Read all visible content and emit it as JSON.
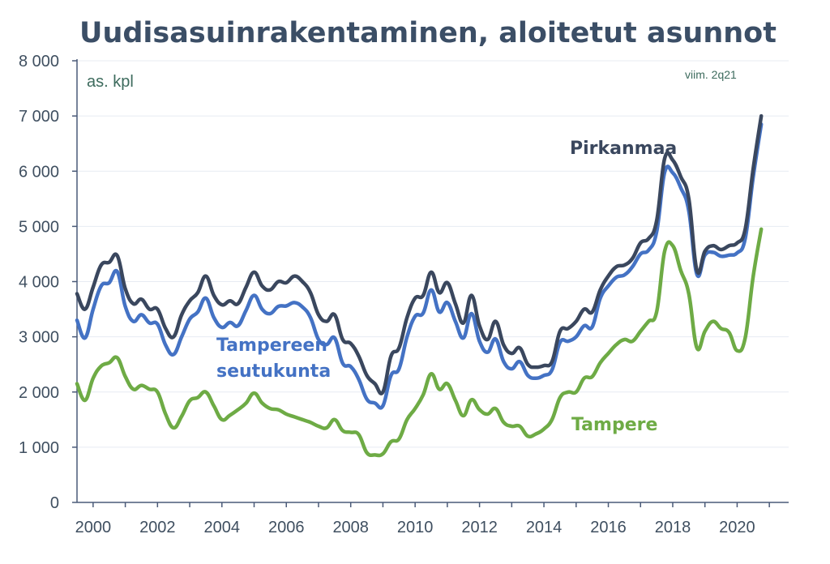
{
  "colors": {
    "title": "#3B4E66",
    "axis_text": "#3F4F60",
    "axis_line": "#4A5A78",
    "grid": "#E7EBF2",
    "note": "#3D6B5D",
    "pirkanmaa": "#3A475E",
    "seutukunta": "#4472C4",
    "tampere": "#6EAB45"
  },
  "chart_data": {
    "type": "line",
    "title": "Uudisasuinrakentaminen, aloitetut asunnot",
    "unit_label": "as. kpl",
    "note": "viim. 2q21",
    "xlim": [
      1999.5,
      2021.6
    ],
    "ylim": [
      0,
      8000
    ],
    "y_ticks": [
      {
        "value": 0,
        "label": "0"
      },
      {
        "value": 1000,
        "label": "1 000"
      },
      {
        "value": 2000,
        "label": "2 000"
      },
      {
        "value": 3000,
        "label": "3 000"
      },
      {
        "value": 4000,
        "label": "4 000"
      },
      {
        "value": 5000,
        "label": "5 000"
      },
      {
        "value": 6000,
        "label": "6 000"
      },
      {
        "value": 7000,
        "label": "7 000"
      },
      {
        "value": 8000,
        "label": "8 000"
      }
    ],
    "x_ticks": [
      {
        "value": 2000,
        "label": "2000"
      },
      {
        "value": 2002,
        "label": "2002"
      },
      {
        "value": 2004,
        "label": "2004"
      },
      {
        "value": 2006,
        "label": "2006"
      },
      {
        "value": 2008,
        "label": "2008"
      },
      {
        "value": 2010,
        "label": "2010"
      },
      {
        "value": 2012,
        "label": "2012"
      },
      {
        "value": 2014,
        "label": "2014"
      },
      {
        "value": 2016,
        "label": "2016"
      },
      {
        "value": 2018,
        "label": "2018"
      },
      {
        "value": 2020,
        "label": "2020"
      }
    ],
    "grid": true,
    "series": [
      {
        "name": "Pirkanmaa",
        "color_key": "pirkanmaa",
        "points": [
          [
            1999.5,
            3780
          ],
          [
            1999.75,
            3500
          ],
          [
            2000.0,
            3900
          ],
          [
            2000.25,
            4300
          ],
          [
            2000.5,
            4350
          ],
          [
            2000.75,
            4470
          ],
          [
            2001.0,
            3870
          ],
          [
            2001.25,
            3600
          ],
          [
            2001.5,
            3680
          ],
          [
            2001.75,
            3500
          ],
          [
            2002.0,
            3500
          ],
          [
            2002.25,
            3150
          ],
          [
            2002.5,
            3000
          ],
          [
            2002.75,
            3400
          ],
          [
            2003.0,
            3650
          ],
          [
            2003.25,
            3800
          ],
          [
            2003.5,
            4100
          ],
          [
            2003.75,
            3750
          ],
          [
            2004.0,
            3580
          ],
          [
            2004.25,
            3650
          ],
          [
            2004.5,
            3600
          ],
          [
            2004.75,
            3900
          ],
          [
            2005.0,
            4170
          ],
          [
            2005.25,
            3920
          ],
          [
            2005.5,
            3850
          ],
          [
            2005.75,
            4000
          ],
          [
            2006.0,
            3980
          ],
          [
            2006.25,
            4100
          ],
          [
            2006.5,
            4000
          ],
          [
            2006.75,
            3800
          ],
          [
            2007.0,
            3400
          ],
          [
            2007.25,
            3280
          ],
          [
            2007.5,
            3400
          ],
          [
            2007.75,
            2950
          ],
          [
            2008.0,
            2880
          ],
          [
            2008.25,
            2650
          ],
          [
            2008.5,
            2300
          ],
          [
            2008.75,
            2150
          ],
          [
            2009.0,
            2000
          ],
          [
            2009.25,
            2650
          ],
          [
            2009.5,
            2800
          ],
          [
            2009.75,
            3350
          ],
          [
            2010.0,
            3700
          ],
          [
            2010.25,
            3750
          ],
          [
            2010.5,
            4170
          ],
          [
            2010.75,
            3800
          ],
          [
            2011.0,
            3980
          ],
          [
            2011.25,
            3600
          ],
          [
            2011.5,
            3250
          ],
          [
            2011.75,
            3750
          ],
          [
            2012.0,
            3200
          ],
          [
            2012.25,
            2950
          ],
          [
            2012.5,
            3280
          ],
          [
            2012.75,
            2850
          ],
          [
            2013.0,
            2700
          ],
          [
            2013.25,
            2800
          ],
          [
            2013.5,
            2500
          ],
          [
            2013.75,
            2450
          ],
          [
            2014.0,
            2480
          ],
          [
            2014.25,
            2550
          ],
          [
            2014.5,
            3100
          ],
          [
            2014.75,
            3150
          ],
          [
            2015.0,
            3280
          ],
          [
            2015.25,
            3500
          ],
          [
            2015.5,
            3450
          ],
          [
            2015.75,
            3850
          ],
          [
            2016.0,
            4100
          ],
          [
            2016.25,
            4270
          ],
          [
            2016.5,
            4300
          ],
          [
            2016.75,
            4420
          ],
          [
            2017.0,
            4700
          ],
          [
            2017.25,
            4780
          ],
          [
            2017.5,
            5100
          ],
          [
            2017.75,
            6230
          ],
          [
            2018.0,
            6200
          ],
          [
            2018.25,
            5900
          ],
          [
            2018.5,
            5500
          ],
          [
            2018.75,
            4200
          ],
          [
            2019.0,
            4550
          ],
          [
            2019.25,
            4650
          ],
          [
            2019.5,
            4580
          ],
          [
            2019.75,
            4650
          ],
          [
            2020.0,
            4700
          ],
          [
            2020.25,
            4950
          ],
          [
            2020.5,
            6050
          ],
          [
            2020.75,
            7000
          ]
        ]
      },
      {
        "name": "Tampereen seutukunta",
        "color_key": "seutukunta",
        "points": [
          [
            1999.5,
            3300
          ],
          [
            1999.75,
            2980
          ],
          [
            2000.0,
            3500
          ],
          [
            2000.25,
            3920
          ],
          [
            2000.5,
            3980
          ],
          [
            2000.75,
            4180
          ],
          [
            2001.0,
            3550
          ],
          [
            2001.25,
            3280
          ],
          [
            2001.5,
            3400
          ],
          [
            2001.75,
            3250
          ],
          [
            2002.0,
            3230
          ],
          [
            2002.25,
            2850
          ],
          [
            2002.5,
            2680
          ],
          [
            2002.75,
            3000
          ],
          [
            2003.0,
            3320
          ],
          [
            2003.25,
            3450
          ],
          [
            2003.5,
            3700
          ],
          [
            2003.75,
            3350
          ],
          [
            2004.0,
            3170
          ],
          [
            2004.25,
            3260
          ],
          [
            2004.5,
            3200
          ],
          [
            2004.75,
            3480
          ],
          [
            2005.0,
            3750
          ],
          [
            2005.25,
            3500
          ],
          [
            2005.5,
            3420
          ],
          [
            2005.75,
            3550
          ],
          [
            2006.0,
            3560
          ],
          [
            2006.25,
            3620
          ],
          [
            2006.5,
            3540
          ],
          [
            2006.75,
            3350
          ],
          [
            2007.0,
            2950
          ],
          [
            2007.25,
            2860
          ],
          [
            2007.5,
            2980
          ],
          [
            2007.75,
            2520
          ],
          [
            2008.0,
            2460
          ],
          [
            2008.25,
            2230
          ],
          [
            2008.5,
            1870
          ],
          [
            2008.75,
            1800
          ],
          [
            2009.0,
            1750
          ],
          [
            2009.25,
            2300
          ],
          [
            2009.5,
            2420
          ],
          [
            2009.75,
            3000
          ],
          [
            2010.0,
            3370
          ],
          [
            2010.25,
            3430
          ],
          [
            2010.5,
            3850
          ],
          [
            2010.75,
            3450
          ],
          [
            2011.0,
            3620
          ],
          [
            2011.25,
            3280
          ],
          [
            2011.5,
            2980
          ],
          [
            2011.75,
            3420
          ],
          [
            2012.0,
            2920
          ],
          [
            2012.25,
            2720
          ],
          [
            2012.5,
            2960
          ],
          [
            2012.75,
            2550
          ],
          [
            2013.0,
            2420
          ],
          [
            2013.25,
            2550
          ],
          [
            2013.5,
            2300
          ],
          [
            2013.75,
            2250
          ],
          [
            2014.0,
            2300
          ],
          [
            2014.25,
            2400
          ],
          [
            2014.5,
            2900
          ],
          [
            2014.75,
            2920
          ],
          [
            2015.0,
            3000
          ],
          [
            2015.25,
            3200
          ],
          [
            2015.5,
            3180
          ],
          [
            2015.75,
            3700
          ],
          [
            2016.0,
            3920
          ],
          [
            2016.25,
            4080
          ],
          [
            2016.5,
            4120
          ],
          [
            2016.75,
            4270
          ],
          [
            2017.0,
            4500
          ],
          [
            2017.25,
            4570
          ],
          [
            2017.5,
            4900
          ],
          [
            2017.75,
            5980
          ],
          [
            2018.0,
            5970
          ],
          [
            2018.25,
            5700
          ],
          [
            2018.5,
            5280
          ],
          [
            2018.75,
            4130
          ],
          [
            2019.0,
            4480
          ],
          [
            2019.25,
            4530
          ],
          [
            2019.5,
            4460
          ],
          [
            2019.75,
            4480
          ],
          [
            2020.0,
            4520
          ],
          [
            2020.25,
            4780
          ],
          [
            2020.5,
            5900
          ],
          [
            2020.75,
            6850
          ]
        ]
      },
      {
        "name": "Tampere",
        "color_key": "tampere",
        "points": [
          [
            1999.5,
            2150
          ],
          [
            1999.75,
            1850
          ],
          [
            2000.0,
            2250
          ],
          [
            2000.25,
            2470
          ],
          [
            2000.5,
            2530
          ],
          [
            2000.75,
            2620
          ],
          [
            2001.0,
            2280
          ],
          [
            2001.25,
            2050
          ],
          [
            2001.5,
            2120
          ],
          [
            2001.75,
            2050
          ],
          [
            2002.0,
            2000
          ],
          [
            2002.25,
            1600
          ],
          [
            2002.5,
            1350
          ],
          [
            2002.75,
            1560
          ],
          [
            2003.0,
            1840
          ],
          [
            2003.25,
            1900
          ],
          [
            2003.5,
            2000
          ],
          [
            2003.75,
            1750
          ],
          [
            2004.0,
            1500
          ],
          [
            2004.25,
            1580
          ],
          [
            2004.5,
            1680
          ],
          [
            2004.75,
            1800
          ],
          [
            2005.0,
            1980
          ],
          [
            2005.25,
            1800
          ],
          [
            2005.5,
            1700
          ],
          [
            2005.75,
            1680
          ],
          [
            2006.0,
            1600
          ],
          [
            2006.25,
            1550
          ],
          [
            2006.5,
            1500
          ],
          [
            2006.75,
            1450
          ],
          [
            2007.0,
            1380
          ],
          [
            2007.25,
            1350
          ],
          [
            2007.5,
            1500
          ],
          [
            2007.75,
            1300
          ],
          [
            2008.0,
            1270
          ],
          [
            2008.25,
            1230
          ],
          [
            2008.5,
            900
          ],
          [
            2008.75,
            860
          ],
          [
            2009.0,
            880
          ],
          [
            2009.25,
            1100
          ],
          [
            2009.5,
            1150
          ],
          [
            2009.75,
            1500
          ],
          [
            2010.0,
            1700
          ],
          [
            2010.25,
            1950
          ],
          [
            2010.5,
            2330
          ],
          [
            2010.75,
            2050
          ],
          [
            2011.0,
            2150
          ],
          [
            2011.25,
            1850
          ],
          [
            2011.5,
            1570
          ],
          [
            2011.75,
            1860
          ],
          [
            2012.0,
            1680
          ],
          [
            2012.25,
            1600
          ],
          [
            2012.5,
            1700
          ],
          [
            2012.75,
            1450
          ],
          [
            2013.0,
            1380
          ],
          [
            2013.25,
            1380
          ],
          [
            2013.5,
            1200
          ],
          [
            2013.75,
            1240
          ],
          [
            2014.0,
            1330
          ],
          [
            2014.25,
            1500
          ],
          [
            2014.5,
            1900
          ],
          [
            2014.75,
            2000
          ],
          [
            2015.0,
            2000
          ],
          [
            2015.25,
            2250
          ],
          [
            2015.5,
            2280
          ],
          [
            2015.75,
            2530
          ],
          [
            2016.0,
            2700
          ],
          [
            2016.25,
            2860
          ],
          [
            2016.5,
            2950
          ],
          [
            2016.75,
            2920
          ],
          [
            2017.0,
            3100
          ],
          [
            2017.25,
            3280
          ],
          [
            2017.5,
            3450
          ],
          [
            2017.75,
            4550
          ],
          [
            2018.0,
            4650
          ],
          [
            2018.25,
            4200
          ],
          [
            2018.5,
            3780
          ],
          [
            2018.75,
            2800
          ],
          [
            2019.0,
            3100
          ],
          [
            2019.25,
            3280
          ],
          [
            2019.5,
            3150
          ],
          [
            2019.75,
            3080
          ],
          [
            2020.0,
            2750
          ],
          [
            2020.25,
            2980
          ],
          [
            2020.5,
            4100
          ],
          [
            2020.75,
            4950
          ]
        ]
      }
    ],
    "series_labels": [
      {
        "key": "pirkanmaa",
        "lines": [
          "Pirkanmaa"
        ]
      },
      {
        "key": "seutukunta",
        "lines": [
          "Tampereen",
          "seutukunta"
        ]
      },
      {
        "key": "tampere",
        "lines": [
          "Tampere"
        ]
      }
    ]
  }
}
